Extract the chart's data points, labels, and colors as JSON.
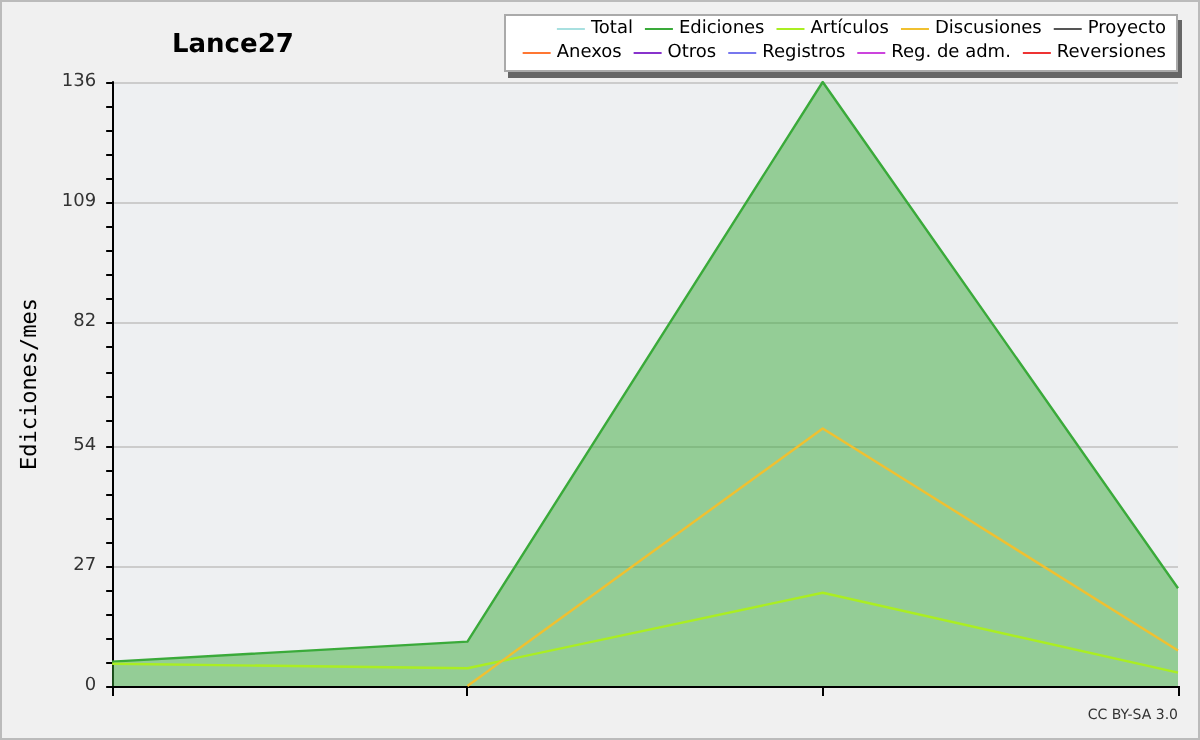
{
  "chart_data": {
    "type": "line",
    "title": "Lance27",
    "ylabel": "Ediciones/mes",
    "categories": [
      null,
      null,
      null,
      null
    ],
    "series": [
      {
        "name": "Total",
        "color": "#a8e0e0",
        "values": [
          null,
          null,
          null,
          null
        ]
      },
      {
        "name": "Ediciones",
        "type": "area",
        "color": "#3aaa3a",
        "values": [
          5.5,
          10,
          136,
          22
        ]
      },
      {
        "name": "Artículos",
        "color": "#aaee22",
        "values": [
          5,
          4,
          21,
          3
        ]
      },
      {
        "name": "Discusiones",
        "color": "#f0c030",
        "values": [
          null,
          0,
          58,
          8
        ]
      },
      {
        "name": "Proyecto",
        "color": "#555555",
        "values": [
          null,
          null,
          null,
          null
        ]
      },
      {
        "name": "Anexos",
        "color": "#ff7733",
        "values": [
          null,
          null,
          null,
          null
        ]
      },
      {
        "name": "Otros",
        "color": "#8833cc",
        "values": [
          null,
          null,
          null,
          null
        ]
      },
      {
        "name": "Registros",
        "color": "#7777ee",
        "values": [
          null,
          null,
          null,
          null
        ]
      },
      {
        "name": "Reg. de adm.",
        "color": "#cc44dd",
        "values": [
          null,
          null,
          null,
          null
        ]
      },
      {
        "name": "Reversiones",
        "color": "#ee3333",
        "values": [
          null,
          null,
          null,
          null
        ]
      }
    ],
    "ylim": [
      0,
      136
    ],
    "yticks": [
      0,
      {
        "value": 5.4,
        "label": null
      },
      {
        "value": 10.8,
        "label": null
      },
      {
        "value": 16.2,
        "label": null
      },
      {
        "value": 21.6,
        "label": null
      },
      27,
      {
        "value": 32.4,
        "label": null
      },
      {
        "value": 37.8,
        "label": null
      },
      {
        "value": 43.2,
        "label": null
      },
      {
        "value": 48.6,
        "label": null
      },
      54,
      {
        "value": 59.6,
        "label": null
      },
      {
        "value": 65.2,
        "label": null
      },
      {
        "value": 70.8,
        "label": null
      },
      {
        "value": 76.4,
        "label": null
      },
      82,
      {
        "value": 87.4,
        "label": null
      },
      {
        "value": 92.8,
        "label": null
      },
      {
        "value": 98.2,
        "label": null
      },
      {
        "value": 103.6,
        "label": null
      },
      109,
      {
        "value": 114.4,
        "label": null
      },
      {
        "value": 119.8,
        "label": null
      },
      {
        "value": 125.2,
        "label": null
      },
      {
        "value": 130.6,
        "label": null
      },
      136
    ],
    "grid": "y",
    "legend": "top right",
    "marker": "none",
    "annotations": [
      "CC BY-SA 3.0"
    ]
  }
}
